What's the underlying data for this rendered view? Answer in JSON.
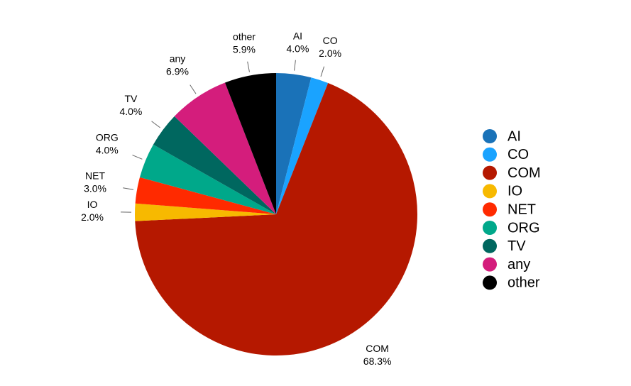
{
  "chart_data": {
    "type": "pie",
    "categories": [
      "AI",
      "CO",
      "COM",
      "IO",
      "NET",
      "ORG",
      "TV",
      "any",
      "other"
    ],
    "values": [
      4.0,
      2.0,
      68.3,
      2.0,
      3.0,
      4.0,
      4.0,
      6.9,
      5.9
    ],
    "value_labels": [
      "4.0%",
      "2.0%",
      "68.3%",
      "2.0%",
      "3.0%",
      "4.0%",
      "4.0%",
      "6.9%",
      "5.9%"
    ],
    "colors": [
      "#1a72b8",
      "#1aa3ff",
      "#b51800",
      "#f7b900",
      "#ff2a00",
      "#00a88a",
      "#00675f",
      "#d41d7c",
      "#000000"
    ],
    "legend": "right"
  }
}
